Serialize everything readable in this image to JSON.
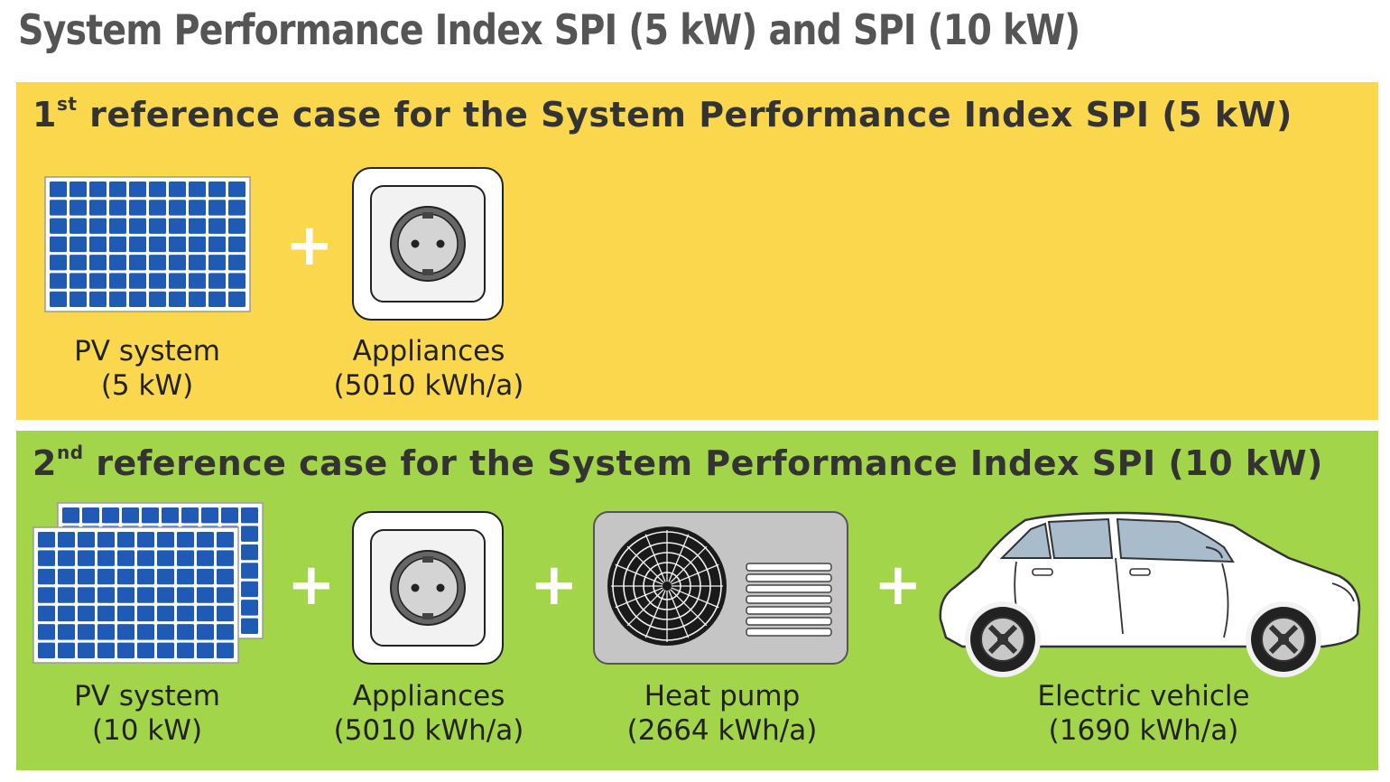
{
  "title": "System Performance Index SPI (5 kW) and SPI (10 kW)",
  "colors": {
    "yellow_panel": "#fbd74d",
    "green_panel": "#a2d54a",
    "solar_cell": "#1f5bb5"
  },
  "case1": {
    "ordinal": "1",
    "ordinal_suffix": "st",
    "heading": " reference case for the System Performance Index SPI (5 kW)",
    "items": [
      {
        "icon": "solar-panel-icon",
        "line1": "PV system",
        "line2": "(5 kW)"
      },
      {
        "icon": "power-outlet-icon",
        "line1": "Appliances",
        "line2": "(5010 kWh/a)"
      }
    ],
    "plus": "+"
  },
  "case2": {
    "ordinal": "2",
    "ordinal_suffix": "nd",
    "heading": " reference case for the System Performance Index SPI (10 kW)",
    "items": [
      {
        "icon": "double-solar-panel-icon",
        "line1": "PV system",
        "line2": "(10 kW)"
      },
      {
        "icon": "power-outlet-icon",
        "line1": "Appliances",
        "line2": "(5010 kWh/a)"
      },
      {
        "icon": "heat-pump-icon",
        "line1": "Heat pump",
        "line2": "(2664 kWh/a)"
      },
      {
        "icon": "electric-car-icon",
        "line1": "Electric vehicle",
        "line2": "(1690 kWh/a)"
      }
    ],
    "plus": "+"
  }
}
